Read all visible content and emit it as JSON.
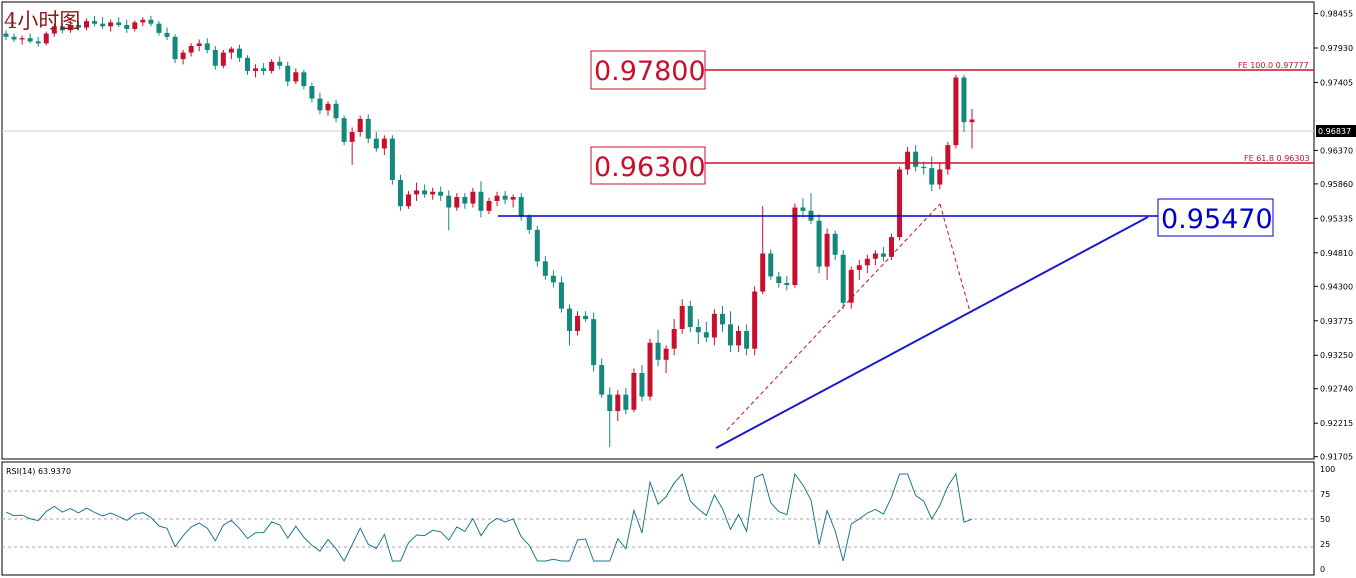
{
  "title": "4小时图",
  "colors": {
    "up": "#c8102e",
    "down": "#12897a",
    "level_red": "#c8102e",
    "level_blue": "#0000cc",
    "trend": "#1a1acc",
    "rsi": "#1f7a8c"
  },
  "price_axis": {
    "min": 0.917,
    "max": 0.986,
    "ticks": [
      "0.98455",
      "0.97930",
      "0.97405",
      "0.96370",
      "0.95860",
      "0.95335",
      "0.94810",
      "0.94300",
      "0.93775",
      "0.93250",
      "0.92740",
      "0.92215",
      "0.91705"
    ]
  },
  "current_price": "0.96837",
  "levels": [
    {
      "label": "0.97800",
      "value": 0.978,
      "note": "FE 100.0  0.97777",
      "style": "red"
    },
    {
      "label": "0.96300",
      "value": 0.963,
      "note": "FE 61.8  0.96303",
      "style": "red"
    },
    {
      "label": "0.95470",
      "value": 0.9547,
      "note": "",
      "style": "blue"
    }
  ],
  "rsi": {
    "label": "RSI(14) 63.9370",
    "ticks": [
      "100",
      "75",
      "50",
      "25",
      "0"
    ]
  },
  "chart_data": {
    "type": "candlestick",
    "title": "4小时图",
    "ylim": [
      0.917,
      0.986
    ],
    "candles": [
      [
        0.9815,
        0.982,
        0.9805,
        0.981
      ],
      [
        0.981,
        0.9815,
        0.9802,
        0.9806
      ],
      [
        0.9806,
        0.9812,
        0.9798,
        0.9808
      ],
      [
        0.9808,
        0.9815,
        0.98,
        0.9803
      ],
      [
        0.9803,
        0.981,
        0.9795,
        0.98
      ],
      [
        0.98,
        0.9818,
        0.9797,
        0.9815
      ],
      [
        0.9815,
        0.983,
        0.981,
        0.9826
      ],
      [
        0.9826,
        0.9832,
        0.9815,
        0.982
      ],
      [
        0.982,
        0.9835,
        0.9816,
        0.9828
      ],
      [
        0.9828,
        0.9834,
        0.982,
        0.9824
      ],
      [
        0.9824,
        0.9838,
        0.982,
        0.9834
      ],
      [
        0.9834,
        0.9842,
        0.9826,
        0.983
      ],
      [
        0.983,
        0.984,
        0.9822,
        0.9826
      ],
      [
        0.9826,
        0.9836,
        0.9818,
        0.9832
      ],
      [
        0.9832,
        0.984,
        0.9825,
        0.9828
      ],
      [
        0.9828,
        0.9836,
        0.9816,
        0.9822
      ],
      [
        0.9822,
        0.9835,
        0.9818,
        0.9832
      ],
      [
        0.9832,
        0.984,
        0.9826,
        0.9836
      ],
      [
        0.9836,
        0.9842,
        0.9826,
        0.983
      ],
      [
        0.983,
        0.9834,
        0.9812,
        0.9816
      ],
      [
        0.9816,
        0.9824,
        0.9805,
        0.981
      ],
      [
        0.981,
        0.9814,
        0.977,
        0.9776
      ],
      [
        0.9776,
        0.979,
        0.9768,
        0.9786
      ],
      [
        0.9786,
        0.98,
        0.978,
        0.9796
      ],
      [
        0.9796,
        0.9806,
        0.9788,
        0.98
      ],
      [
        0.98,
        0.9808,
        0.9785,
        0.979
      ],
      [
        0.979,
        0.9796,
        0.976,
        0.9766
      ],
      [
        0.9766,
        0.979,
        0.9762,
        0.9786
      ],
      [
        0.9786,
        0.9795,
        0.9776,
        0.9792
      ],
      [
        0.9792,
        0.9798,
        0.9772,
        0.9778
      ],
      [
        0.9778,
        0.9782,
        0.9752,
        0.9758
      ],
      [
        0.9758,
        0.9768,
        0.9748,
        0.9762
      ],
      [
        0.9762,
        0.977,
        0.9752,
        0.9758
      ],
      [
        0.9758,
        0.9776,
        0.9754,
        0.9772
      ],
      [
        0.9772,
        0.978,
        0.976,
        0.9766
      ],
      [
        0.9766,
        0.9772,
        0.9735,
        0.9742
      ],
      [
        0.9742,
        0.9762,
        0.9738,
        0.9756
      ],
      [
        0.9756,
        0.976,
        0.973,
        0.9735
      ],
      [
        0.9735,
        0.974,
        0.971,
        0.9716
      ],
      [
        0.9716,
        0.9725,
        0.9692,
        0.9698
      ],
      [
        0.9698,
        0.9712,
        0.969,
        0.9708
      ],
      [
        0.9708,
        0.9714,
        0.968,
        0.9686
      ],
      [
        0.9686,
        0.969,
        0.9645,
        0.965
      ],
      [
        0.965,
        0.9672,
        0.9615,
        0.9665
      ],
      [
        0.9665,
        0.969,
        0.9658,
        0.9685
      ],
      [
        0.9685,
        0.9692,
        0.9648,
        0.9655
      ],
      [
        0.9655,
        0.9665,
        0.9635,
        0.964
      ],
      [
        0.964,
        0.966,
        0.963,
        0.9655
      ],
      [
        0.9655,
        0.966,
        0.9585,
        0.9592
      ],
      [
        0.9592,
        0.96,
        0.9545,
        0.9552
      ],
      [
        0.9552,
        0.9575,
        0.9548,
        0.957
      ],
      [
        0.957,
        0.9588,
        0.956,
        0.9576
      ],
      [
        0.9576,
        0.9585,
        0.9565,
        0.957
      ],
      [
        0.957,
        0.958,
        0.9562,
        0.9574
      ],
      [
        0.9574,
        0.9582,
        0.956,
        0.9568
      ],
      [
        0.9568,
        0.9576,
        0.9515,
        0.955
      ],
      [
        0.955,
        0.9572,
        0.9545,
        0.9566
      ],
      [
        0.9566,
        0.9572,
        0.9548,
        0.9556
      ],
      [
        0.9556,
        0.958,
        0.955,
        0.9574
      ],
      [
        0.9574,
        0.959,
        0.9535,
        0.9545
      ],
      [
        0.9545,
        0.9565,
        0.954,
        0.956
      ],
      [
        0.956,
        0.9574,
        0.9552,
        0.9568
      ],
      [
        0.9568,
        0.9575,
        0.9555,
        0.9562
      ],
      [
        0.9562,
        0.957,
        0.955,
        0.9566
      ],
      [
        0.9566,
        0.9572,
        0.953,
        0.9536
      ],
      [
        0.9536,
        0.954,
        0.951,
        0.9516
      ],
      [
        0.9516,
        0.9522,
        0.946,
        0.9468
      ],
      [
        0.9468,
        0.9476,
        0.944,
        0.9446
      ],
      [
        0.9446,
        0.9454,
        0.9428,
        0.9436
      ],
      [
        0.9436,
        0.9445,
        0.939,
        0.9396
      ],
      [
        0.9396,
        0.9402,
        0.934,
        0.9362
      ],
      [
        0.9362,
        0.9392,
        0.9355,
        0.9385
      ],
      [
        0.9385,
        0.9392,
        0.9376,
        0.938
      ],
      [
        0.938,
        0.939,
        0.93,
        0.931
      ],
      [
        0.931,
        0.932,
        0.926,
        0.9265
      ],
      [
        0.9265,
        0.9276,
        0.9185,
        0.924
      ],
      [
        0.924,
        0.9272,
        0.9225,
        0.9265
      ],
      [
        0.9265,
        0.9275,
        0.9235,
        0.9242
      ],
      [
        0.9242,
        0.9305,
        0.9238,
        0.9298
      ],
      [
        0.9298,
        0.931,
        0.9255,
        0.9262
      ],
      [
        0.9262,
        0.935,
        0.9256,
        0.9344
      ],
      [
        0.9344,
        0.9364,
        0.9308,
        0.9318
      ],
      [
        0.9318,
        0.934,
        0.9298,
        0.9335
      ],
      [
        0.9335,
        0.938,
        0.9325,
        0.9365
      ],
      [
        0.9365,
        0.941,
        0.9358,
        0.94
      ],
      [
        0.94,
        0.9408,
        0.936,
        0.9368
      ],
      [
        0.9368,
        0.938,
        0.9342,
        0.936
      ],
      [
        0.936,
        0.9376,
        0.9345,
        0.9352
      ],
      [
        0.9352,
        0.9395,
        0.934,
        0.9388
      ],
      [
        0.9388,
        0.94,
        0.936,
        0.9372
      ],
      [
        0.9372,
        0.9392,
        0.933,
        0.934
      ],
      [
        0.934,
        0.937,
        0.933,
        0.9362
      ],
      [
        0.9362,
        0.9372,
        0.9325,
        0.9335
      ],
      [
        0.9335,
        0.943,
        0.9325,
        0.9422
      ],
      [
        0.9422,
        0.9552,
        0.9418,
        0.948
      ],
      [
        0.948,
        0.9486,
        0.944,
        0.9445
      ],
      [
        0.9445,
        0.9452,
        0.9428,
        0.9435
      ],
      [
        0.9435,
        0.9446,
        0.9424,
        0.9432
      ],
      [
        0.9432,
        0.9556,
        0.9428,
        0.955
      ],
      [
        0.955,
        0.9564,
        0.9535,
        0.9545
      ],
      [
        0.9545,
        0.9572,
        0.9525,
        0.953
      ],
      [
        0.953,
        0.954,
        0.945,
        0.946
      ],
      [
        0.946,
        0.9518,
        0.944,
        0.951
      ],
      [
        0.951,
        0.9515,
        0.947,
        0.9478
      ],
      [
        0.9478,
        0.9485,
        0.9395,
        0.9405
      ],
      [
        0.9405,
        0.946,
        0.9396,
        0.9455
      ],
      [
        0.9455,
        0.947,
        0.944,
        0.9462
      ],
      [
        0.9462,
        0.9478,
        0.945,
        0.9472
      ],
      [
        0.9472,
        0.9485,
        0.9462,
        0.948
      ],
      [
        0.948,
        0.949,
        0.9468,
        0.9475
      ],
      [
        0.9475,
        0.951,
        0.947,
        0.9505
      ],
      [
        0.9505,
        0.9612,
        0.95,
        0.9608
      ],
      [
        0.9608,
        0.9642,
        0.96,
        0.9635
      ],
      [
        0.9635,
        0.9645,
        0.9605,
        0.9612
      ],
      [
        0.9612,
        0.962,
        0.96,
        0.961
      ],
      [
        0.961,
        0.9628,
        0.9575,
        0.9585
      ],
      [
        0.9585,
        0.9618,
        0.9578,
        0.9608
      ],
      [
        0.9608,
        0.965,
        0.96,
        0.9645
      ],
      [
        0.9645,
        0.9752,
        0.964,
        0.9748
      ],
      [
        0.9748,
        0.9752,
        0.9665,
        0.968
      ],
      [
        0.968,
        0.97,
        0.964,
        0.9684
      ]
    ]
  }
}
